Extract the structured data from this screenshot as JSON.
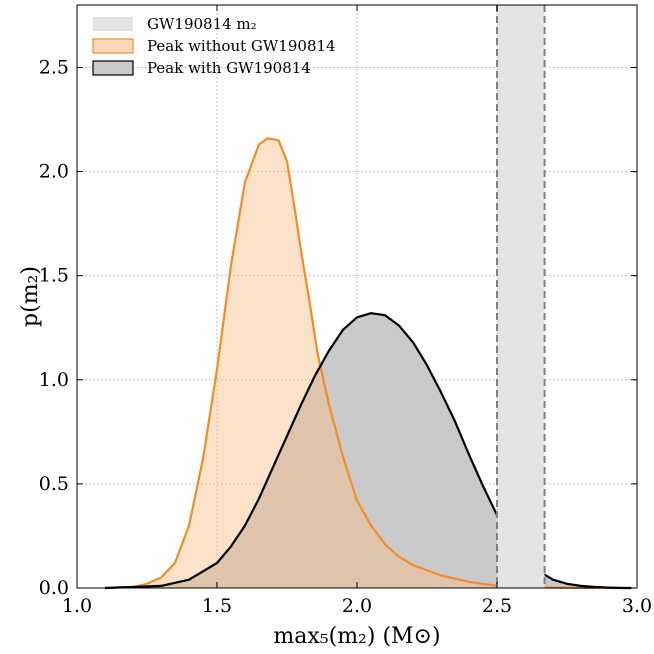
{
  "chart_data": {
    "type": "area",
    "xlabel": "max₅(m₂) (M⊙)",
    "ylabel": "p(m₂)",
    "xlim": [
      1.0,
      3.0
    ],
    "ylim": [
      0.0,
      2.8
    ],
    "xticks": [
      "1.0",
      "1.5",
      "2.0",
      "2.5",
      "3.0"
    ],
    "yticks": [
      "0.0",
      "0.5",
      "1.0",
      "1.5",
      "2.0",
      "2.5"
    ],
    "xtick_values": [
      1.0,
      1.5,
      2.0,
      2.5,
      3.0
    ],
    "ytick_values": [
      0.0,
      0.5,
      1.0,
      1.5,
      2.0,
      2.5
    ],
    "grid": true,
    "legend_position": "top-left",
    "band": {
      "name": "GW190814 m₂",
      "xmin": 2.5,
      "xmax": 2.67,
      "color": "#e3e3e3",
      "edge_color": "#808080"
    },
    "series": [
      {
        "name": "Peak without GW190814",
        "line_color": "#f28c28",
        "fill_color": "#fbd9bd",
        "x": [
          1.1,
          1.2,
          1.25,
          1.3,
          1.35,
          1.4,
          1.45,
          1.5,
          1.55,
          1.6,
          1.65,
          1.68,
          1.72,
          1.75,
          1.78,
          1.8,
          1.83,
          1.86,
          1.9,
          1.95,
          2.0,
          2.05,
          2.1,
          2.15,
          2.2,
          2.3,
          2.4,
          2.5,
          2.6,
          2.7,
          2.8,
          2.9,
          2.98
        ],
        "y": [
          0.0,
          0.005,
          0.02,
          0.05,
          0.12,
          0.3,
          0.62,
          1.05,
          1.55,
          1.95,
          2.13,
          2.16,
          2.15,
          2.05,
          1.8,
          1.62,
          1.38,
          1.12,
          0.88,
          0.63,
          0.42,
          0.3,
          0.21,
          0.15,
          0.11,
          0.06,
          0.03,
          0.01,
          0.005,
          0.002,
          0.001,
          0.0,
          0.0
        ]
      },
      {
        "name": "Peak with GW190814",
        "line_color": "#000000",
        "fill_color": "#c9c9c9",
        "x": [
          1.1,
          1.3,
          1.4,
          1.5,
          1.55,
          1.6,
          1.65,
          1.7,
          1.75,
          1.8,
          1.85,
          1.9,
          1.95,
          2.0,
          2.05,
          2.1,
          2.15,
          2.2,
          2.25,
          2.3,
          2.35,
          2.4,
          2.45,
          2.5,
          2.55,
          2.6,
          2.65,
          2.7,
          2.75,
          2.8,
          2.85,
          2.9,
          2.95,
          2.98
        ],
        "y": [
          0.0,
          0.01,
          0.04,
          0.12,
          0.2,
          0.3,
          0.43,
          0.58,
          0.73,
          0.88,
          1.02,
          1.14,
          1.24,
          1.3,
          1.32,
          1.31,
          1.26,
          1.18,
          1.07,
          0.94,
          0.8,
          0.64,
          0.49,
          0.35,
          0.24,
          0.15,
          0.08,
          0.04,
          0.02,
          0.01,
          0.005,
          0.002,
          0.0,
          0.0
        ]
      }
    ]
  }
}
